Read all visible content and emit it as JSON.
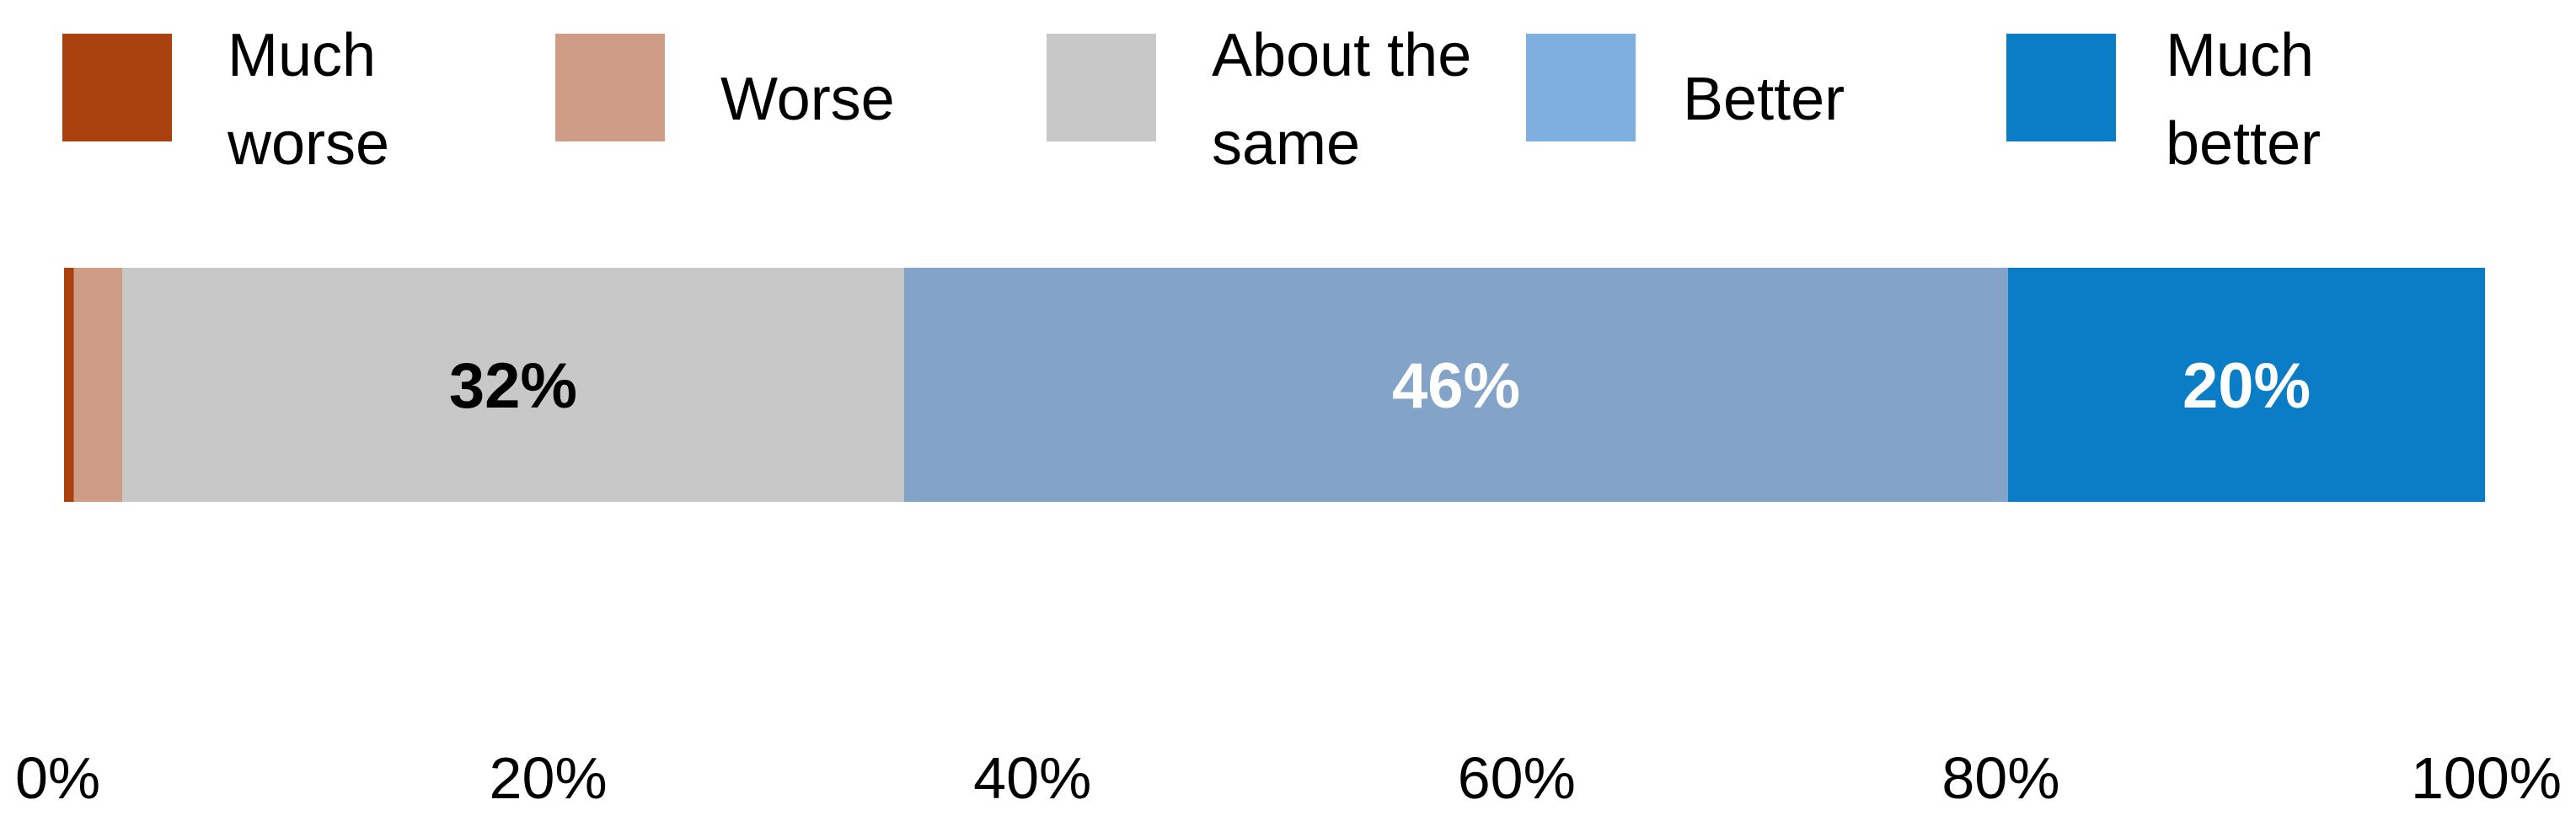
{
  "chart_data": {
    "type": "bar",
    "orientation": "horizontal",
    "stacked": true,
    "percent_stacked": true,
    "categories": [
      ""
    ],
    "series": [
      {
        "name": "Much worse",
        "values": [
          0.4
        ],
        "color": "#a9420f",
        "data_label": ""
      },
      {
        "name": "Worse",
        "values": [
          2.0
        ],
        "color": "#cf9d85",
        "data_label": ""
      },
      {
        "name": "About the same",
        "values": [
          32.3
        ],
        "color": "#c8c8c8",
        "data_label": "32%"
      },
      {
        "name": "Better",
        "values": [
          45.6
        ],
        "color": "#84a3c8",
        "data_label": "46%"
      },
      {
        "name": "Much better",
        "values": [
          19.7
        ],
        "color": "#0b7dc7",
        "data_label": "20%"
      }
    ],
    "legend_entries": [
      {
        "label": "Much worse",
        "color": "#a9420f"
      },
      {
        "label": "Worse",
        "color": "#cf9d85"
      },
      {
        "label": "About the same",
        "color": "#c8c8c8"
      },
      {
        "label": "Better",
        "color": "#7faee0"
      },
      {
        "label": "Much better",
        "color": "#0b7dc7"
      }
    ],
    "label_colors": {
      "About the same": "#000000",
      "Better": "#ffffff",
      "Much better": "#ffffff"
    },
    "x_ticks": [
      "0%",
      "20%",
      "40%",
      "60%",
      "80%",
      "100%"
    ],
    "xlim": [
      0,
      100
    ],
    "title": "",
    "xlabel": "",
    "ylabel": "",
    "grid": false,
    "legend_position": "top"
  }
}
